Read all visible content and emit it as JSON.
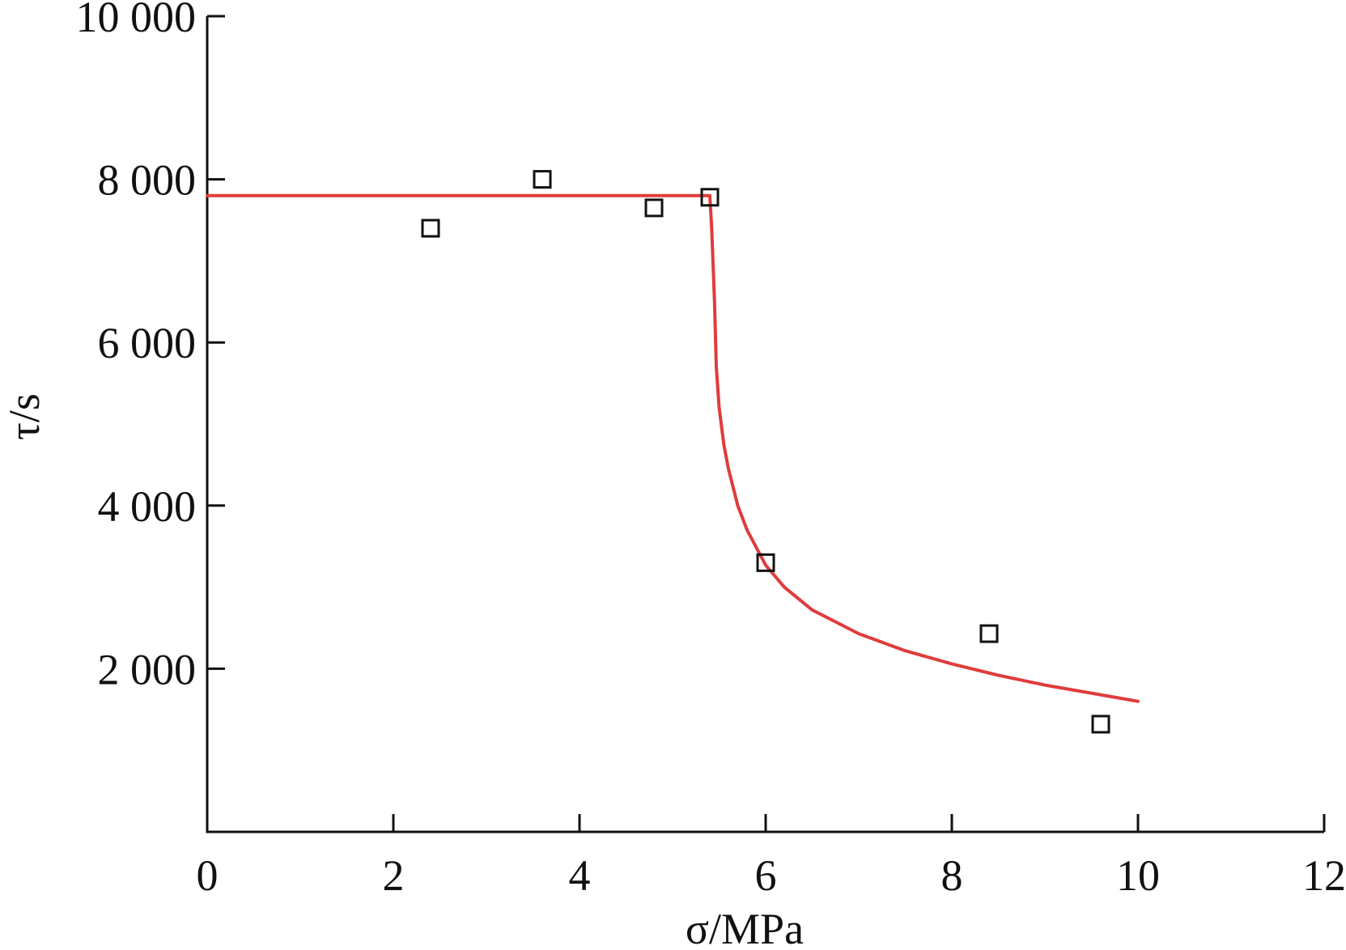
{
  "chart_data": {
    "type": "scatter",
    "title": "",
    "xlabel": "σ/MPa",
    "ylabel": "τ/s",
    "xlim": [
      0,
      12
    ],
    "ylim": [
      0,
      10000
    ],
    "x_ticks": [
      0,
      2,
      4,
      6,
      8,
      10,
      12
    ],
    "x_tick_labels": [
      "0",
      "2",
      "4",
      "6",
      "8",
      "10",
      "12"
    ],
    "y_ticks": [
      2000,
      4000,
      6000,
      8000,
      10000
    ],
    "y_tick_labels": [
      "2 000",
      "4 000",
      "6 000",
      "8 000",
      "10 000"
    ],
    "grid": false,
    "legend": "none",
    "series": [
      {
        "type": "scatter",
        "marker": "open-square",
        "color": "#111111",
        "points": [
          {
            "x": 2.4,
            "y": 7400
          },
          {
            "x": 3.6,
            "y": 8000
          },
          {
            "x": 4.8,
            "y": 7650
          },
          {
            "x": 5.4,
            "y": 7780
          },
          {
            "x": 6.0,
            "y": 3300
          },
          {
            "x": 8.4,
            "y": 2430
          },
          {
            "x": 9.6,
            "y": 1320
          }
        ]
      },
      {
        "type": "line",
        "color": "#e03c3c",
        "points": [
          {
            "x": 0,
            "y": 7800
          },
          {
            "x": 5.4,
            "y": 7800
          },
          {
            "x": 5.42,
            "y": 7400
          },
          {
            "x": 5.45,
            "y": 6500
          },
          {
            "x": 5.47,
            "y": 5700
          },
          {
            "x": 5.5,
            "y": 5200
          },
          {
            "x": 5.55,
            "y": 4750
          },
          {
            "x": 5.6,
            "y": 4450
          },
          {
            "x": 5.7,
            "y": 4000
          },
          {
            "x": 5.8,
            "y": 3700
          },
          {
            "x": 6.0,
            "y": 3270
          },
          {
            "x": 6.2,
            "y": 3000
          },
          {
            "x": 6.5,
            "y": 2720
          },
          {
            "x": 7.0,
            "y": 2430
          },
          {
            "x": 7.5,
            "y": 2220
          },
          {
            "x": 8.0,
            "y": 2060
          },
          {
            "x": 8.5,
            "y": 1920
          },
          {
            "x": 9.0,
            "y": 1800
          },
          {
            "x": 9.5,
            "y": 1700
          },
          {
            "x": 10.0,
            "y": 1600
          }
        ]
      }
    ]
  }
}
